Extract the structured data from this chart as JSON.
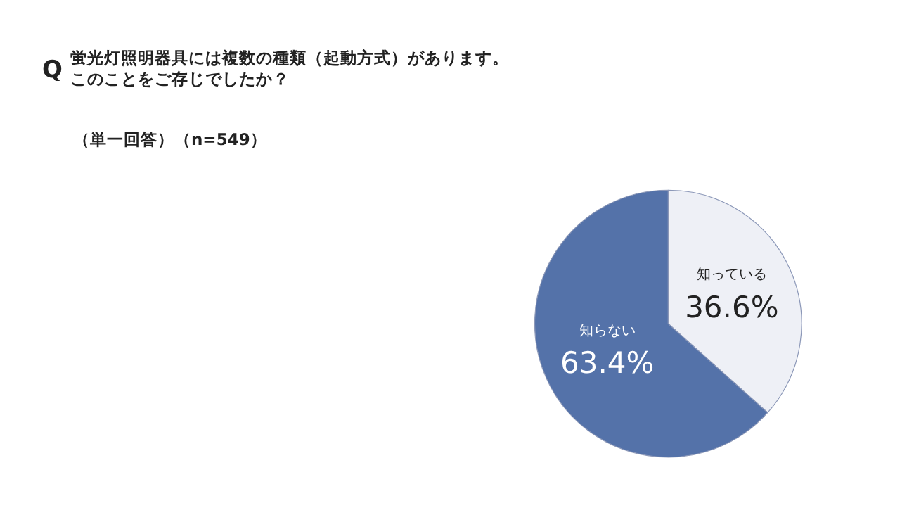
{
  "chart_data": {
    "type": "pie",
    "title": "蛍光灯照明器具には複数の種類（起動方式）があります。",
    "subtitle": "このことをご存じでしたか？",
    "annotations": [
      "Q",
      "（単一回答）（n=549）"
    ],
    "categories": [
      "知っている",
      "知らない"
    ],
    "values": [
      36.6,
      63.4
    ],
    "value_labels": [
      "36.6%",
      "63.4%"
    ],
    "colors": [
      "#eef0f6",
      "#5472a9"
    ],
    "legend": false
  }
}
